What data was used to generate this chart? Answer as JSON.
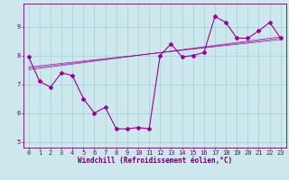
{
  "title": "",
  "xlabel": "Windchill (Refroidissement éolien,°C)",
  "ylabel": "",
  "background_color": "#cce8ec",
  "line_color": "#990099",
  "marker": "D",
  "markersize": 2.0,
  "linewidth": 0.8,
  "x_data": [
    0,
    1,
    2,
    3,
    4,
    5,
    6,
    7,
    8,
    9,
    10,
    11,
    12,
    13,
    14,
    15,
    16,
    17,
    18,
    19,
    20,
    21,
    22,
    23
  ],
  "y_data": [
    7.95,
    7.1,
    6.9,
    7.4,
    7.3,
    6.5,
    6.0,
    6.2,
    5.45,
    5.45,
    5.5,
    5.45,
    8.0,
    8.4,
    7.95,
    8.0,
    8.1,
    9.35,
    9.15,
    8.6,
    8.6,
    8.85,
    9.15,
    8.6
  ],
  "xlim": [
    -0.5,
    23.5
  ],
  "ylim": [
    4.8,
    9.8
  ],
  "yticks": [
    5,
    6,
    7,
    8,
    9
  ],
  "xticks": [
    0,
    1,
    2,
    3,
    4,
    5,
    6,
    7,
    8,
    9,
    10,
    11,
    12,
    13,
    14,
    15,
    16,
    17,
    18,
    19,
    20,
    21,
    22,
    23
  ],
  "grid_color": "#a0c8d0",
  "spine_color": "#660066",
  "tick_color": "#660066",
  "label_color": "#660066",
  "xlabel_fontsize": 5.5,
  "tick_fontsize": 5.0,
  "figsize": [
    3.2,
    2.0
  ],
  "dpi": 100,
  "trend_lines": [
    {
      "x": [
        0,
        23
      ],
      "y": [
        7.6,
        8.55
      ]
    },
    {
      "x": [
        0,
        23
      ],
      "y": [
        7.55,
        8.6
      ]
    },
    {
      "x": [
        0,
        23
      ],
      "y": [
        7.5,
        8.65
      ]
    }
  ]
}
